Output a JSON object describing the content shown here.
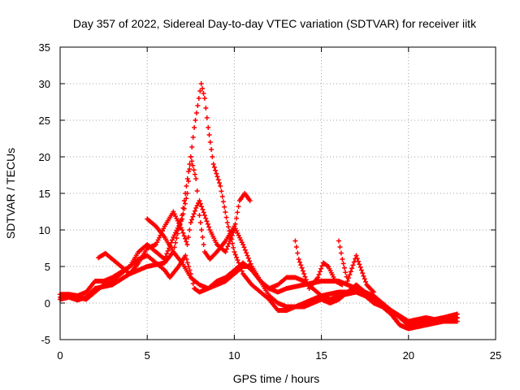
{
  "chart_data": {
    "type": "scatter",
    "title": "Day 357 of 2022, Sidereal Day-to-day VTEC variation (SDTVAR) for receiver iitk",
    "xlabel": "GPS time / hours",
    "ylabel": "SDTVAR / TECUs",
    "xlim": [
      0,
      25
    ],
    "ylim": [
      -5,
      35
    ],
    "xticks": [
      "0",
      "5",
      "10",
      "15",
      "20",
      "25"
    ],
    "yticks": [
      "-5",
      "0",
      "5",
      "10",
      "15",
      "20",
      "25",
      "30",
      "35"
    ],
    "grid": true,
    "marker": "+",
    "color": "#ff0000",
    "series": [
      {
        "name": "track-1",
        "points": [
          [
            0,
            0.5
          ],
          [
            0.5,
            0.8
          ],
          [
            1,
            0.4
          ],
          [
            1.5,
            0.8
          ],
          [
            2,
            2
          ],
          [
            3,
            2.5
          ],
          [
            4,
            4
          ],
          [
            5,
            5
          ],
          [
            6,
            5.5
          ],
          [
            6.5,
            7
          ],
          [
            7,
            12
          ],
          [
            7.5,
            20
          ],
          [
            7.7,
            24
          ],
          [
            7.9,
            27
          ],
          [
            8.1,
            30
          ],
          [
            8.3,
            28
          ],
          [
            8.5,
            24
          ],
          [
            8.8,
            19
          ],
          [
            9.2,
            16
          ],
          [
            9.6,
            11
          ],
          [
            10,
            7
          ],
          [
            10.5,
            4
          ],
          [
            11,
            2.5
          ],
          [
            11.5,
            1.5
          ],
          [
            12,
            0.5
          ],
          [
            12.5,
            -1
          ],
          [
            13,
            -1
          ],
          [
            13.5,
            -0.5
          ],
          [
            14,
            0
          ],
          [
            15,
            1
          ],
          [
            16,
            1.5
          ],
          [
            17,
            1.5
          ],
          [
            18,
            0.5
          ],
          [
            19,
            -1.5
          ],
          [
            19.5,
            -3
          ],
          [
            20,
            -3.5
          ],
          [
            20.5,
            -2.5
          ],
          [
            21,
            -2.5
          ],
          [
            22,
            -2
          ],
          [
            22.8,
            -2
          ]
        ]
      },
      {
        "name": "track-2",
        "points": [
          [
            0,
            1.2
          ],
          [
            0.5,
            1.2
          ],
          [
            1,
            1
          ],
          [
            1.5,
            1.5
          ],
          [
            2,
            3
          ],
          [
            2.5,
            3
          ],
          [
            3,
            3.5
          ],
          [
            4,
            5
          ],
          [
            4.5,
            7
          ],
          [
            5,
            8
          ],
          [
            5.5,
            7
          ],
          [
            6,
            6
          ],
          [
            6.5,
            9
          ],
          [
            7,
            11.5
          ],
          [
            7.3,
            15
          ],
          [
            7.5,
            20
          ],
          [
            7.8,
            17
          ],
          [
            8,
            12
          ],
          [
            8.3,
            7
          ],
          [
            8.6,
            6
          ],
          [
            9,
            7
          ],
          [
            9.5,
            8.5
          ],
          [
            10,
            10.5
          ],
          [
            10.5,
            8
          ],
          [
            11,
            5
          ],
          [
            11.5,
            3
          ],
          [
            12,
            2
          ],
          [
            12.5,
            1.5
          ],
          [
            13,
            2
          ],
          [
            14,
            2.5
          ],
          [
            15,
            3
          ],
          [
            16,
            3
          ],
          [
            17,
            2
          ],
          [
            18,
            1
          ],
          [
            18.5,
            0
          ],
          [
            19,
            -1
          ],
          [
            20,
            -2.5
          ],
          [
            21,
            -2
          ],
          [
            22,
            -2.5
          ],
          [
            22.8,
            -2
          ]
        ]
      },
      {
        "name": "track-3",
        "points": [
          [
            0,
            0.8
          ],
          [
            0.7,
            1
          ],
          [
            1.5,
            0.5
          ],
          [
            2,
            1.5
          ],
          [
            2.5,
            2.5
          ],
          [
            3,
            3
          ],
          [
            4,
            5
          ],
          [
            4.5,
            6
          ],
          [
            5,
            6.5
          ],
          [
            5.5,
            5.5
          ],
          [
            6,
            4.5
          ],
          [
            6.3,
            3.5
          ],
          [
            6.8,
            5
          ],
          [
            7.2,
            6.5
          ],
          [
            7.5,
            4
          ],
          [
            7.7,
            2
          ],
          [
            8,
            1.5
          ],
          [
            8.5,
            2
          ],
          [
            9,
            3
          ],
          [
            9.5,
            3.5
          ],
          [
            10,
            4.5
          ],
          [
            10.5,
            5.5
          ],
          [
            11,
            4.5
          ],
          [
            11.5,
            3
          ],
          [
            12,
            2
          ],
          [
            12.5,
            2.5
          ],
          [
            13,
            3.5
          ],
          [
            13.5,
            3.5
          ],
          [
            14,
            3
          ],
          [
            14.5,
            2
          ],
          [
            15,
            1
          ],
          [
            15.5,
            0.5
          ],
          [
            16,
            1
          ],
          [
            17,
            1.5
          ],
          [
            17.5,
            1
          ],
          [
            18,
            0
          ],
          [
            18.5,
            -0.5
          ],
          [
            19,
            -1.5
          ],
          [
            19.5,
            -3
          ],
          [
            20,
            -3.5
          ],
          [
            21,
            -3
          ],
          [
            22,
            -2.5
          ],
          [
            22.8,
            -2.5
          ]
        ]
      },
      {
        "name": "track-4",
        "points": [
          [
            5,
            11.5
          ],
          [
            5.5,
            10.5
          ],
          [
            6,
            9
          ],
          [
            6.5,
            7
          ],
          [
            7,
            5.5
          ],
          [
            7.5,
            3.5
          ],
          [
            8,
            2.5
          ],
          [
            8.5,
            2
          ],
          [
            9,
            2.5
          ],
          [
            9.5,
            3
          ],
          [
            10,
            4
          ],
          [
            10.5,
            5
          ],
          [
            11,
            5
          ],
          [
            11.5,
            3
          ],
          [
            12,
            1
          ],
          [
            12.5,
            0
          ],
          [
            13,
            -0.5
          ],
          [
            13.5,
            -0.5
          ],
          [
            14,
            -0.5
          ],
          [
            15,
            0.5
          ],
          [
            15.5,
            0
          ],
          [
            16,
            0.5
          ],
          [
            17,
            2.5
          ],
          [
            17.5,
            1.5
          ],
          [
            18,
            0.5
          ],
          [
            19,
            -1
          ],
          [
            20,
            -3
          ],
          [
            21,
            -2.5
          ],
          [
            22,
            -2
          ],
          [
            22.8,
            -1.5
          ]
        ]
      },
      {
        "name": "track-5",
        "points": [
          [
            2.2,
            6.2
          ],
          [
            2.6,
            6.8
          ],
          [
            3,
            6
          ],
          [
            3.5,
            5
          ],
          [
            4,
            4
          ],
          [
            4.5,
            5.5
          ],
          [
            5,
            7.5
          ],
          [
            5.5,
            8
          ],
          [
            6,
            10.5
          ],
          [
            6.5,
            12.5
          ],
          [
            7,
            10
          ],
          [
            7.3,
            8
          ],
          [
            7.5,
            11
          ],
          [
            7.8,
            13
          ],
          [
            8,
            14
          ],
          [
            8.3,
            12
          ],
          [
            8.6,
            10
          ],
          [
            9,
            8
          ],
          [
            9.5,
            7
          ],
          [
            10,
            10
          ],
          [
            10.3,
            14
          ],
          [
            10.6,
            15
          ],
          [
            10.9,
            14
          ]
        ]
      },
      {
        "name": "track-6",
        "points": [
          [
            13.5,
            8.5
          ],
          [
            13.7,
            6
          ],
          [
            14,
            4
          ],
          [
            14.3,
            2
          ],
          [
            14.8,
            3.5
          ],
          [
            15.1,
            5.5
          ],
          [
            15.4,
            5
          ],
          [
            15.8,
            3
          ],
          [
            16.2,
            2.5
          ]
        ]
      },
      {
        "name": "track-7",
        "points": [
          [
            16,
            8.5
          ],
          [
            16.2,
            6
          ],
          [
            16.5,
            3
          ],
          [
            17,
            6.5
          ],
          [
            17.3,
            4.5
          ],
          [
            17.6,
            2.5
          ],
          [
            18,
            1.5
          ]
        ]
      }
    ]
  }
}
